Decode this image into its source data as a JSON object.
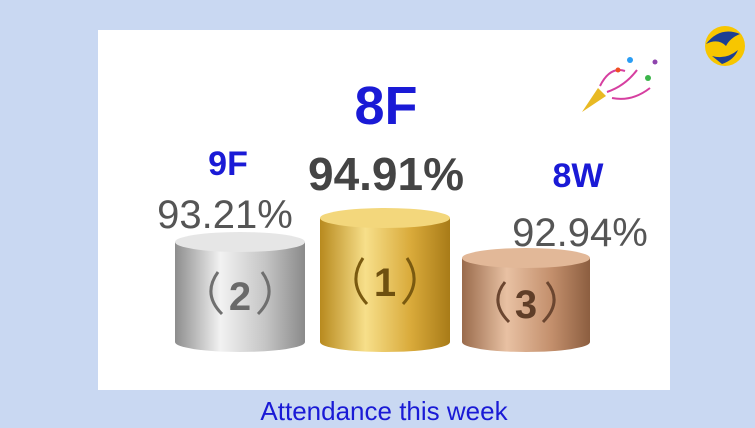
{
  "podium": [
    {
      "rank": "2",
      "class": "9F",
      "attendance": "93.21%"
    },
    {
      "rank": "1",
      "class": "8F",
      "attendance": "94.91%"
    },
    {
      "rank": "3",
      "class": "8W",
      "attendance": "92.94%"
    }
  ],
  "caption": "Attendance this week"
}
